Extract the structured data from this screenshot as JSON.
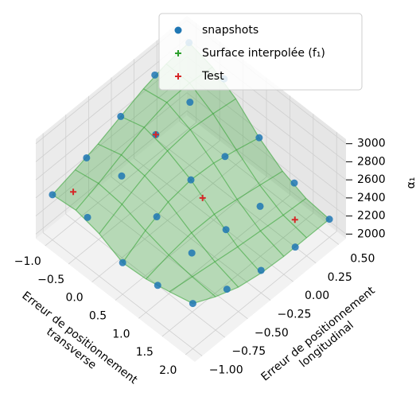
{
  "chart_data": {
    "type": "scatter3d",
    "xlabel": "Erreur de positionnement\ntransverse",
    "ylabel": "Erreur de positionnement\nlongitudinal",
    "zlabel": "α₁",
    "xlim": [
      -1.2,
      2.2
    ],
    "xticks": [
      {
        "value": -1,
        "label": "−1.0"
      },
      {
        "value": -0.5,
        "label": "−0.5"
      },
      {
        "value": 0,
        "label": "0.0"
      },
      {
        "value": 0.5,
        "label": "0.5"
      },
      {
        "value": 1,
        "label": "1.0"
      },
      {
        "value": 1.5,
        "label": "1.5"
      },
      {
        "value": 2,
        "label": "2.0"
      }
    ],
    "ylim": [
      -1.08,
      0.58
    ],
    "yticks": [
      {
        "value": -1,
        "label": "−1.00"
      },
      {
        "value": -0.75,
        "label": "−0.75"
      },
      {
        "value": -0.5,
        "label": "−0.50"
      },
      {
        "value": -0.25,
        "label": "−0.25"
      },
      {
        "value": 0,
        "label": "0.00"
      },
      {
        "value": 0.25,
        "label": "0.25"
      },
      {
        "value": 0.5,
        "label": "0.50"
      }
    ],
    "zlim": [
      1950,
      3050
    ],
    "zticks": [
      2000,
      2200,
      2400,
      2600,
      2800,
      3000
    ],
    "grid": true,
    "legend": "upper center",
    "series": [
      {
        "name": "snapshots",
        "color": "#1f77b4",
        "marker": "circle",
        "x": [
          -1,
          -1,
          -1,
          -1,
          -1,
          -0.25,
          -0.25,
          -0.25,
          -0.25,
          -0.25,
          0.5,
          0.5,
          0.5,
          0.5,
          0.5,
          1.25,
          1.25,
          1.25,
          1.25,
          1.25,
          2,
          2,
          2,
          2,
          2
        ],
        "y": [
          -1,
          -0.625,
          -0.25,
          0.125,
          0.5,
          -1,
          -0.625,
          -0.25,
          0.125,
          0.5,
          -1,
          -0.625,
          -0.25,
          0.125,
          0.5,
          -1,
          -0.625,
          -0.25,
          0.125,
          0.5,
          -1,
          -0.625,
          -0.25,
          0.125,
          0.5
        ],
        "z": [
          2450,
          2550,
          2700,
          2850,
          2900,
          2500,
          2650,
          2800,
          2850,
          2800,
          2300,
          2500,
          2600,
          2550,
          2450,
          2350,
          2400,
          2350,
          2300,
          2250,
          2450,
          2300,
          2200,
          2150,
          2150
        ]
      },
      {
        "name": "Surface interpolée (f₁)",
        "color": "#2ca02c",
        "marker": "surface",
        "x": [
          -1,
          -0.5,
          0,
          0.5,
          1,
          1.5,
          2
        ],
        "y": [
          -1,
          -0.75,
          -0.5,
          -0.25,
          0,
          0.25,
          0.5
        ],
        "z": [
          [
            2450,
            2520,
            2600,
            2700,
            2800,
            2870,
            2900
          ],
          [
            2480,
            2570,
            2680,
            2780,
            2850,
            2860,
            2830
          ],
          [
            2420,
            2540,
            2650,
            2720,
            2750,
            2720,
            2680
          ],
          [
            2300,
            2450,
            2560,
            2600,
            2580,
            2520,
            2450
          ],
          [
            2320,
            2380,
            2420,
            2420,
            2380,
            2330,
            2280
          ],
          [
            2380,
            2340,
            2300,
            2260,
            2230,
            2200,
            2180
          ],
          [
            2450,
            2320,
            2220,
            2170,
            2150,
            2150,
            2150
          ]
        ]
      },
      {
        "name": "Test",
        "color": "#d62728",
        "marker": "plus",
        "x": [
          -0.75,
          -0.25,
          0.75,
          1.75
        ],
        "y": [
          -0.9,
          -0.25,
          -0.25,
          0.25
        ],
        "z": [
          2500,
          2800,
          2500,
          2250
        ]
      }
    ]
  }
}
